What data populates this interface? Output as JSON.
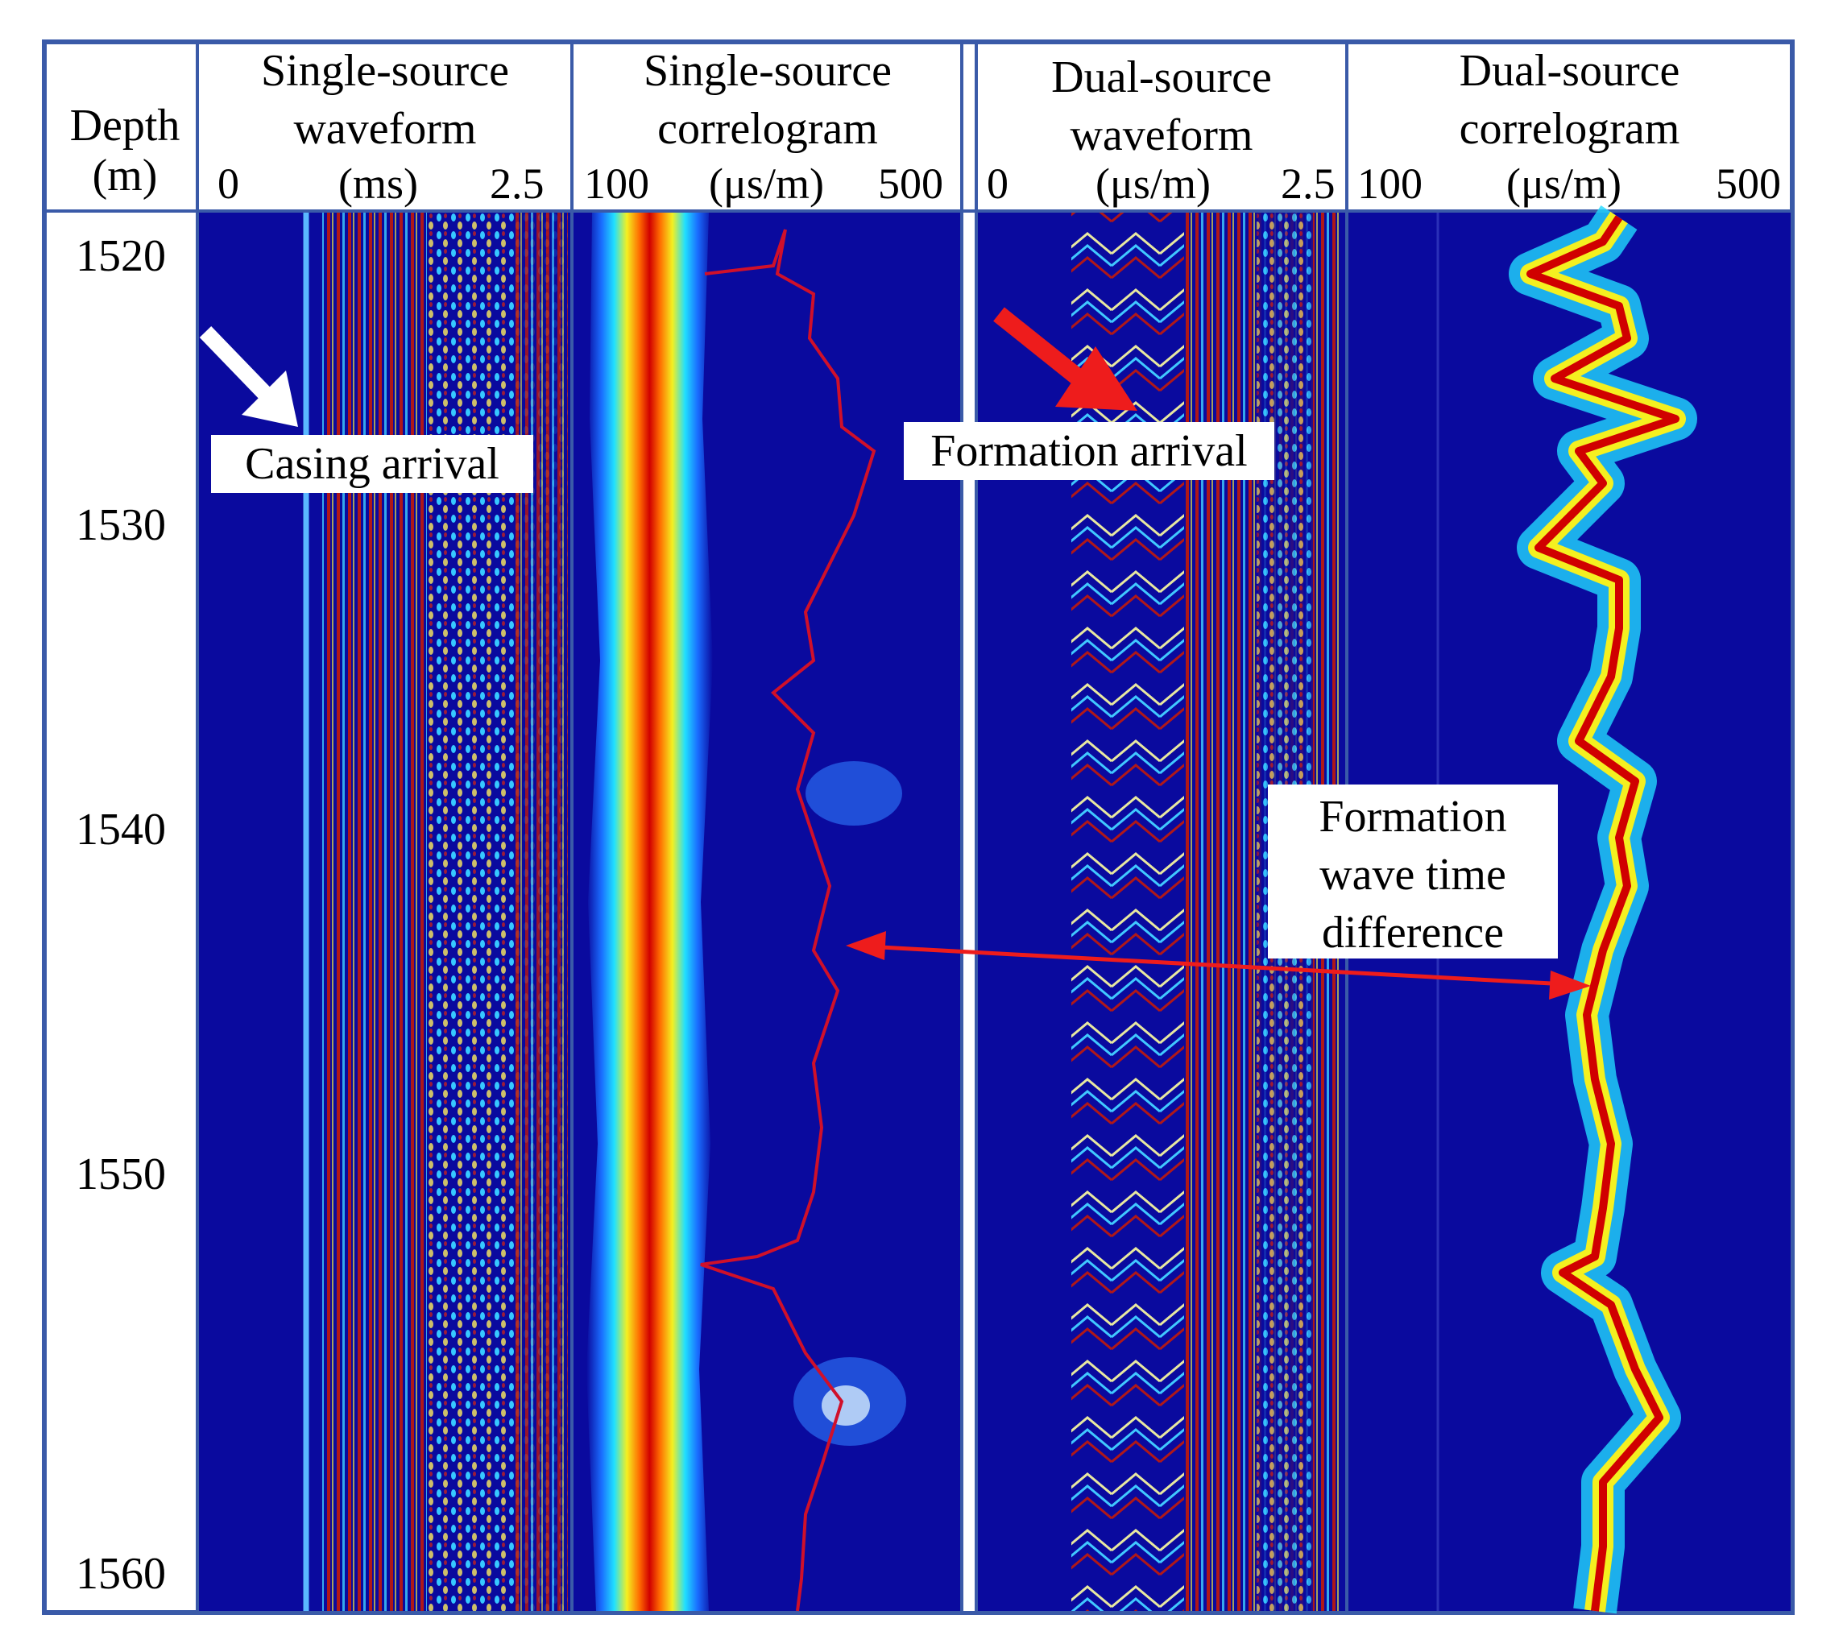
{
  "depth_header": {
    "line1": "Depth",
    "line2": "(m)"
  },
  "depth_ticks": [
    "1520",
    "1530",
    "1540",
    "1550",
    "1560"
  ],
  "tracks": [
    {
      "title_line1": "Single-source",
      "title_line2": "waveform",
      "scale_min": "0",
      "scale_unit": "(ms)",
      "scale_max": "2.5"
    },
    {
      "title_line1": "Single-source",
      "title_line2": "correlogram",
      "scale_min": "100",
      "scale_unit": "(μs/m)",
      "scale_max": "500"
    },
    {
      "title_line1": "Dual-source",
      "title_line2": "waveform",
      "scale_min": "0",
      "scale_unit": "(μs/m)",
      "scale_max": "2.5"
    },
    {
      "title_line1": "Dual-source",
      "title_line2": "correlogram",
      "scale_min": "100",
      "scale_unit": "(μs/m)",
      "scale_max": "500"
    }
  ],
  "annotations": {
    "casing_arrival": "Casing arrival",
    "formation_arrival": "Formation arrival",
    "time_difference_line1": "Formation",
    "time_difference_line2": "wave time",
    "time_difference_line3": "difference"
  },
  "colors": {
    "border": "#3a5aa8",
    "background_blue": "#0a0a9e",
    "trace_red": "#d0102a",
    "arrow_white": "#ffffff",
    "arrow_red": "#ee1c1c"
  }
}
